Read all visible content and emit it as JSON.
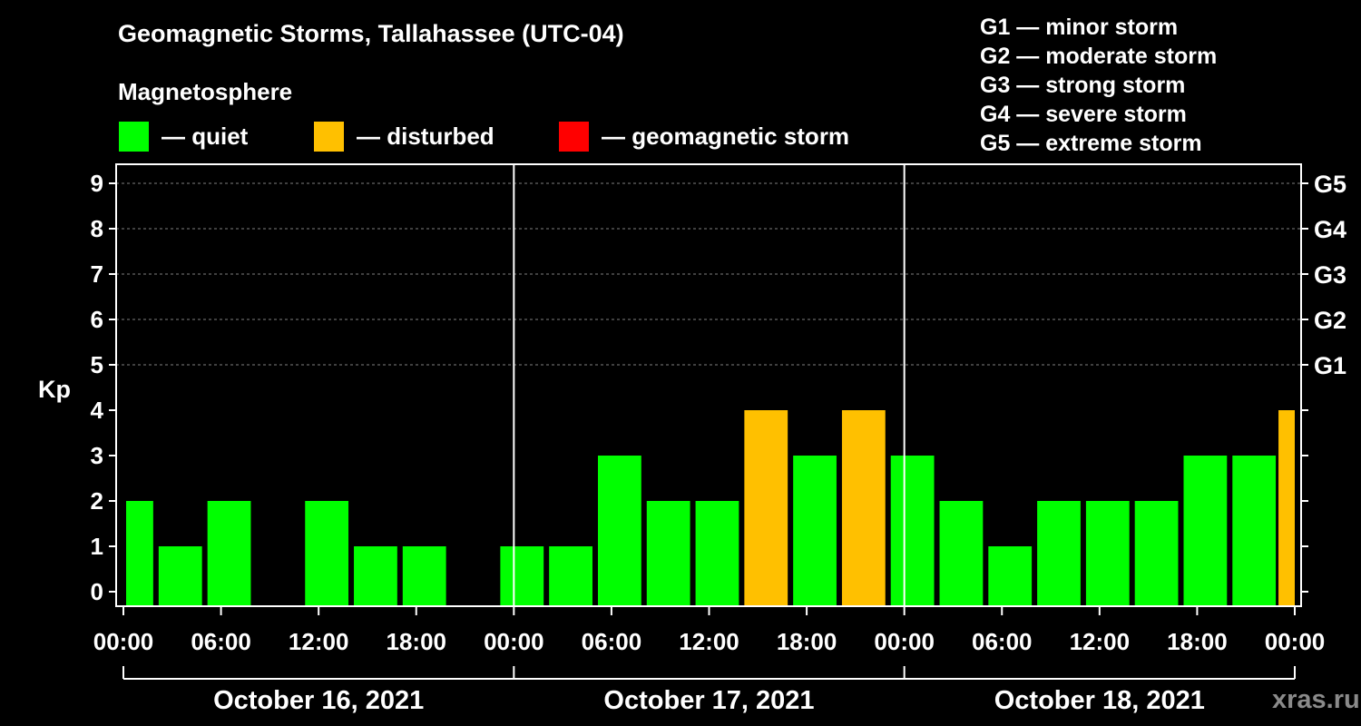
{
  "title": "Geomagnetic Storms, Tallahassee (UTC-04)",
  "subtitle": "Magnetosphere",
  "legend": [
    {
      "label": "— quiet",
      "color": "#00ff00"
    },
    {
      "label": "— disturbed",
      "color": "#ffc000"
    },
    {
      "label": "— geomagnetic storm",
      "color": "#ff0000"
    }
  ],
  "g_levels": [
    "G1 — minor storm",
    "G2 — moderate storm",
    "G3 — strong storm",
    "G4 — severe storm",
    "G5 — extreme storm"
  ],
  "watermark": "xras.ru",
  "colors": {
    "quiet": "#00ff00",
    "disturbed": "#ffc000",
    "storm": "#ff0000",
    "axis": "#ffffff",
    "grid": "#808080"
  },
  "chart_data": {
    "type": "bar",
    "title": "Geomagnetic Storms, Tallahassee (UTC-04)",
    "ylabel": "Kp",
    "ylim": [
      0,
      9
    ],
    "x_unit": "hours from 2021-10-16 00:00 local time",
    "xlim_hours": [
      0,
      72
    ],
    "yticks": [
      0,
      1,
      2,
      3,
      4,
      5,
      6,
      7,
      8,
      9
    ],
    "right_axis": [
      {
        "label": "G1",
        "kp": 5
      },
      {
        "label": "G2",
        "kp": 6
      },
      {
        "label": "G3",
        "kp": 7
      },
      {
        "label": "G4",
        "kp": 8
      },
      {
        "label": "G5",
        "kp": 9
      }
    ],
    "xtick_labels": [
      "00:00",
      "06:00",
      "12:00",
      "18:00",
      "00:00",
      "06:00",
      "12:00",
      "18:00",
      "00:00",
      "06:00",
      "12:00",
      "18:00",
      "00:00"
    ],
    "xtick_hours": [
      0,
      6,
      12,
      18,
      24,
      30,
      36,
      42,
      48,
      54,
      60,
      66,
      72
    ],
    "day_separators_hours": [
      24,
      48
    ],
    "days": [
      {
        "label": "October 16, 2021",
        "start_hour": 0,
        "end_hour": 24
      },
      {
        "label": "October 17, 2021",
        "start_hour": 24,
        "end_hour": 48
      },
      {
        "label": "October 18, 2021",
        "start_hour": 48,
        "end_hour": 72
      }
    ],
    "series": [
      {
        "name": "Kp",
        "bars": [
          {
            "start": 0,
            "end": 2,
            "kp": 2,
            "status": "quiet"
          },
          {
            "start": 2,
            "end": 5,
            "kp": 1,
            "status": "quiet"
          },
          {
            "start": 5,
            "end": 8,
            "kp": 2,
            "status": "quiet"
          },
          {
            "start": 8,
            "end": 11,
            "kp": 0,
            "status": "quiet"
          },
          {
            "start": 11,
            "end": 14,
            "kp": 2,
            "status": "quiet"
          },
          {
            "start": 14,
            "end": 17,
            "kp": 1,
            "status": "quiet"
          },
          {
            "start": 17,
            "end": 20,
            "kp": 1,
            "status": "quiet"
          },
          {
            "start": 20,
            "end": 23,
            "kp": 0,
            "status": "quiet"
          },
          {
            "start": 23,
            "end": 26,
            "kp": 1,
            "status": "quiet"
          },
          {
            "start": 26,
            "end": 29,
            "kp": 1,
            "status": "quiet"
          },
          {
            "start": 29,
            "end": 32,
            "kp": 3,
            "status": "quiet"
          },
          {
            "start": 32,
            "end": 35,
            "kp": 2,
            "status": "quiet"
          },
          {
            "start": 35,
            "end": 38,
            "kp": 2,
            "status": "quiet"
          },
          {
            "start": 38,
            "end": 41,
            "kp": 4,
            "status": "disturbed"
          },
          {
            "start": 41,
            "end": 44,
            "kp": 3,
            "status": "quiet"
          },
          {
            "start": 44,
            "end": 47,
            "kp": 4,
            "status": "disturbed"
          },
          {
            "start": 47,
            "end": 50,
            "kp": 3,
            "status": "quiet"
          },
          {
            "start": 50,
            "end": 53,
            "kp": 2,
            "status": "quiet"
          },
          {
            "start": 53,
            "end": 56,
            "kp": 1,
            "status": "quiet"
          },
          {
            "start": 56,
            "end": 59,
            "kp": 2,
            "status": "quiet"
          },
          {
            "start": 59,
            "end": 62,
            "kp": 2,
            "status": "quiet"
          },
          {
            "start": 62,
            "end": 65,
            "kp": 2,
            "status": "quiet"
          },
          {
            "start": 65,
            "end": 68,
            "kp": 3,
            "status": "quiet"
          },
          {
            "start": 68,
            "end": 71,
            "kp": 3,
            "status": "quiet"
          },
          {
            "start": 71,
            "end": 72,
            "kp": 4,
            "status": "disturbed"
          }
        ]
      }
    ]
  }
}
